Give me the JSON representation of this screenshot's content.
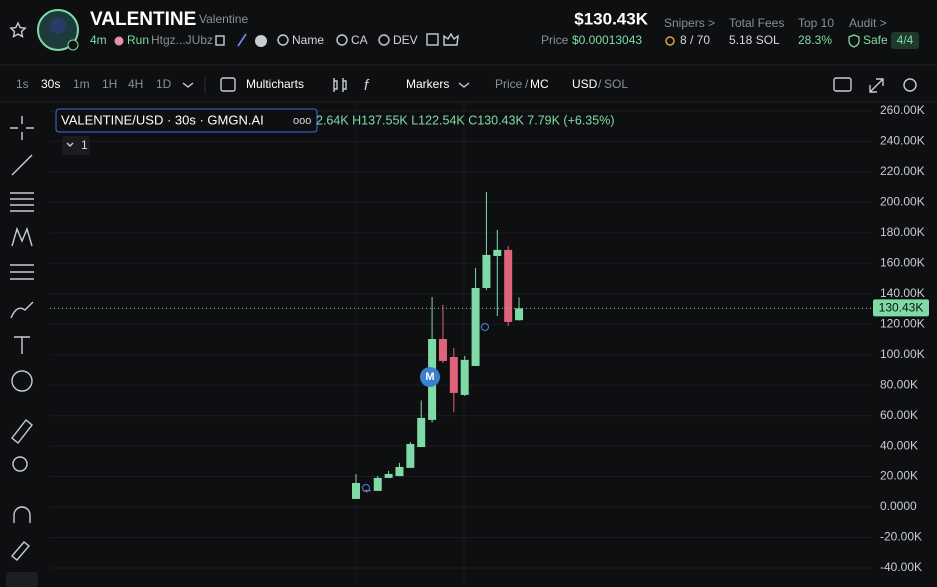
{
  "header": {
    "name": "VALENTINE",
    "subname": "Valentine",
    "age": "4m",
    "tag": "Run",
    "address": "Htgz...JUbz",
    "links": [
      "Name",
      "CA",
      "DEV"
    ],
    "market_cap": "$130.43K",
    "price_label": "Price",
    "price": "$0.00013043",
    "stats": [
      {
        "label": "Snipers >",
        "value": "8 / 70"
      },
      {
        "label": "Total Fees",
        "value": "5.18 SOL"
      },
      {
        "label": "Top 10",
        "value": "28.3%"
      },
      {
        "label": "Audit >",
        "value": "Safe",
        "badge": "4/4"
      }
    ]
  },
  "toolbar": {
    "intervals": [
      "1s",
      "30s",
      "1m",
      "1H",
      "4H",
      "1D"
    ],
    "multicharts": "Multicharts",
    "markers": "Markers",
    "price": "Price",
    "slash": "/",
    "mc": "MC",
    "usd": "USD",
    "sol": "SOL"
  },
  "chart_data": {
    "type": "candlestick",
    "title": "VALENTINE/USD · 30s · GMGN.AI",
    "ohlc_text": "2.64K H137.55K L122.54K C130.43K 7.79K (+6.35%)",
    "indicator_count": "1",
    "marker": "M",
    "last_price_label": "130.43K",
    "up_color": "#7fdba6",
    "down_color": "#e0637c",
    "open": [
      5300,
      11000,
      10600,
      19100,
      20300,
      25700,
      39400,
      57200,
      110300,
      98500,
      73600,
      92600,
      143800,
      164800,
      168800,
      122640
    ],
    "high": [
      21700,
      11500,
      20400,
      23700,
      29000,
      42700,
      70000,
      137900,
      132700,
      104400,
      99200,
      157000,
      206800,
      181900,
      171400,
      137550
    ],
    "low": [
      5300,
      9500,
      10600,
      19100,
      20300,
      25700,
      39400,
      55500,
      94600,
      62400,
      72900,
      92600,
      142500,
      125400,
      118900,
      122540
    ],
    "close": [
      15800,
      10500,
      19100,
      21700,
      26300,
      41400,
      58500,
      110300,
      95900,
      74900,
      96600,
      143800,
      165500,
      168800,
      121500,
      130430
    ],
    "ylim": [
      -52500,
      267200
    ],
    "yticks": [
      {
        "value": 260000,
        "label": "260.00K"
      },
      {
        "value": 240000,
        "label": "240.00K"
      },
      {
        "value": 220000,
        "label": "220.00K"
      },
      {
        "value": 200000,
        "label": "200.00K"
      },
      {
        "value": 180000,
        "label": "180.00K"
      },
      {
        "value": 160000,
        "label": "160.00K"
      },
      {
        "value": 140000,
        "label": "140.00K"
      },
      {
        "value": 120000,
        "label": "120.00K"
      },
      {
        "value": 100000,
        "label": "100.00K"
      },
      {
        "value": 80000,
        "label": "80.00K"
      },
      {
        "value": 60000,
        "label": "60.00K"
      },
      {
        "value": 40000,
        "label": "40.00K"
      },
      {
        "value": 20000,
        "label": "20.00K"
      },
      {
        "value": 0,
        "label": "0.0000"
      },
      {
        "value": -20000,
        "label": "-20.00K"
      },
      {
        "value": -40000,
        "label": "-40.00K"
      }
    ],
    "grid": true
  }
}
